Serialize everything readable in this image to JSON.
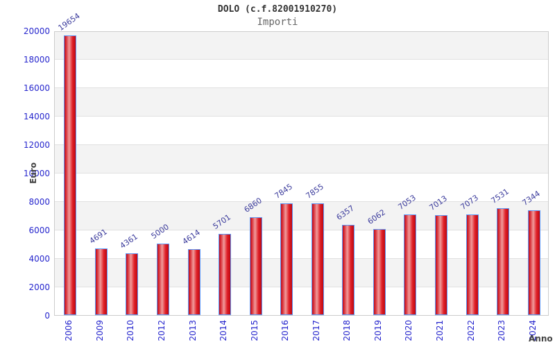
{
  "chart_data": {
    "type": "bar",
    "title": "DOLO (c.f.82001910270)",
    "subtitle": "Importi",
    "xlabel": "Anno",
    "ylabel": "Euro",
    "categories": [
      "2006",
      "2009",
      "2010",
      "2012",
      "2013",
      "2014",
      "2015",
      "2016",
      "2017",
      "2018",
      "2019",
      "2020",
      "2021",
      "2022",
      "2023",
      "2024"
    ],
    "values": [
      19654,
      4691,
      4361,
      5000,
      4614,
      5701,
      6860,
      7845,
      7855,
      6357,
      6062,
      7053,
      7013,
      7073,
      7531,
      7344
    ],
    "ylim": [
      0,
      20000
    ],
    "ytick_step": 2000,
    "ytick_labels": [
      "0",
      "2000",
      "4000",
      "6000",
      "8000",
      "10000",
      "12000",
      "14000",
      "16000",
      "18000",
      "20000"
    ],
    "legend": "none",
    "grid": "horizontal-bands",
    "colors": {
      "bar_fill_dark": "#c00a18",
      "bar_fill_light": "#f09b9b",
      "bar_border": "#5b97f7",
      "tick_label": "#2525cd",
      "value_label": "#3b3b9c",
      "band": "#f3f3f3",
      "gridline": "#e0e0e0",
      "plot_border": "#cccccc",
      "title_text": "#333333",
      "subtitle_text": "#666666",
      "axis_label_text": "#444444"
    }
  }
}
